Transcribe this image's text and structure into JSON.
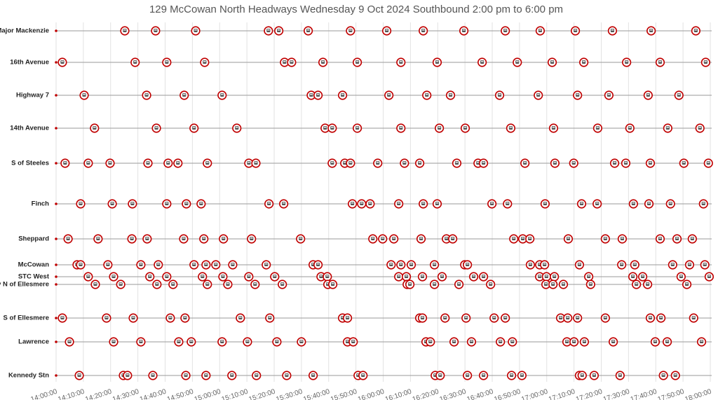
{
  "chart_data": {
    "type": "timeline",
    "title": "129 McCowan North Headways Wednesday 9 Oct 2024 Southbound 2:00 pm to 6:00 pm",
    "xlim": [
      840,
      1080
    ],
    "xticks": [
      {
        "value": 840,
        "label": "14:00:00"
      },
      {
        "value": 850,
        "label": "14:10:00"
      },
      {
        "value": 860,
        "label": "14:20:00"
      },
      {
        "value": 870,
        "label": "14:30:00"
      },
      {
        "value": 880,
        "label": "14:40:00"
      },
      {
        "value": 890,
        "label": "14:50:00"
      },
      {
        "value": 900,
        "label": "15:00:00"
      },
      {
        "value": 910,
        "label": "15:10:00"
      },
      {
        "value": 920,
        "label": "15:20:00"
      },
      {
        "value": 930,
        "label": "15:30:00"
      },
      {
        "value": 940,
        "label": "15:40:00"
      },
      {
        "value": 950,
        "label": "15:50:00"
      },
      {
        "value": 960,
        "label": "16:00:00"
      },
      {
        "value": 970,
        "label": "16:10:00"
      },
      {
        "value": 980,
        "label": "16:20:00"
      },
      {
        "value": 990,
        "label": "16:30:00"
      },
      {
        "value": 1000,
        "label": "16:40:00"
      },
      {
        "value": 1010,
        "label": "16:50:00"
      },
      {
        "value": 1020,
        "label": "17:00:00"
      },
      {
        "value": 1030,
        "label": "17:10:00"
      },
      {
        "value": 1040,
        "label": "17:20:00"
      },
      {
        "value": 1050,
        "label": "17:30:00"
      },
      {
        "value": 1060,
        "label": "17:40:00"
      },
      {
        "value": 1070,
        "label": "17:50:00"
      },
      {
        "value": 1080,
        "label": "18:00:00"
      }
    ],
    "grid": true,
    "color": "#c00000",
    "series": [
      {
        "name": "S of Major Mackenzie",
        "x": [
          865.2,
          876.5,
          891.2,
          917.9,
          921.7,
          932.5,
          948,
          961.3,
          974.7,
          989.6,
          1004.8,
          1017.6,
          1030.5,
          1044.1,
          1058.3,
          1074.7
        ]
      },
      {
        "name": "16th Avenue",
        "x": [
          842.3,
          869,
          880.6,
          894.5,
          923.8,
          926.4,
          937.9,
          950.5,
          966.5,
          979.8,
          996.3,
          1009.2,
          1022,
          1033.6,
          1049.3,
          1061.6,
          1078.3
        ]
      },
      {
        "name": "Highway 7",
        "x": [
          850.3,
          873.2,
          887,
          900.9,
          933.6,
          936.1,
          945.1,
          962.1,
          976,
          984.7,
          1002.7,
          1016.9,
          1031.3,
          1042.8,
          1057.2,
          1068.5
        ]
      },
      {
        "name": "14th Avenue",
        "x": [
          854.1,
          876.8,
          890.6,
          906.3,
          938.7,
          941.3,
          950.5,
          966.5,
          980.6,
          990.1,
          1006.8,
          1022.5,
          1038.7,
          1050.5,
          1064.4,
          1076.2
        ]
      },
      {
        "name": "S of Steeles",
        "x": [
          843.3,
          851.8,
          859.8,
          873.7,
          881.1,
          884.7,
          895.5,
          910.7,
          913.3,
          941.3,
          945.9,
          948,
          958,
          967.8,
          973.4,
          987,
          994.8,
          996.8,
          1012,
          1023,
          1029.9,
          1044.9,
          1049,
          1058,
          1070.3,
          1079.3
        ]
      },
      {
        "name": "Finch",
        "x": [
          849,
          860.6,
          868,
          880.6,
          887.8,
          893.2,
          918.1,
          923.5,
          948.7,
          952.1,
          955.2,
          965.7,
          974.7,
          979.8,
          999.9,
          1005.6,
          1019.4,
          1032.8,
          1038.5,
          1051.8,
          1057.5,
          1065.4,
          1077.5
        ]
      },
      {
        "name": "Sheppard",
        "x": [
          844.4,
          855.4,
          867.8,
          873.4,
          886.8,
          894.2,
          901.4,
          911.7,
          929.7,
          956.2,
          959.8,
          963.9,
          973.9,
          983.2,
          985.5,
          1007.9,
          1011.2,
          1013.8,
          1027.9,
          1041.5,
          1047.7,
          1061.6,
          1067.8,
          1073.4
        ]
      },
      {
        "name": "McCowan",
        "x": [
          847.7,
          849,
          859,
          871.1,
          877.5,
          890.6,
          895,
          898.6,
          904.8,
          917.1,
          934.3,
          936.1,
          962.9,
          966.5,
          970.3,
          978.8,
          989.9,
          990.9,
          1014,
          1017.4,
          1019.2,
          1032,
          1047.5,
          1052.3,
          1066.2,
          1072.4,
          1078
        ]
      },
      {
        "name": "STC West",
        "x": [
          851.8,
          861.1,
          874.4,
          880.6,
          893.7,
          901.2,
          910.7,
          920.2,
          937.2,
          939.5,
          965.7,
          968.5,
          974.4,
          981.6,
          993.2,
          996.8,
          1017.4,
          1019.9,
          1022.8,
          1035.4,
          1051.6,
          1055.2,
          1069.3,
          1079.6
        ]
      },
      {
        "name": "Brimley N of Ellesmere",
        "x": [
          854.4,
          863.7,
          877,
          882.9,
          895.5,
          903,
          913,
          923,
          939.7,
          941.5,
          968.8,
          969.8,
          978.8,
          987.8,
          999.4,
          1019.7,
          1022.3,
          1026.1,
          1036.1,
          1052.9,
          1057,
          1071.4
        ]
      },
      {
        "name": "S of Ellesmere",
        "x": [
          842.3,
          858.5,
          868.3,
          881.9,
          887.3,
          907.6,
          918.4,
          945.1,
          946.9,
          973.4,
          974.4,
          982.7,
          990.4,
          1000.7,
          1004.8,
          1025.1,
          1027.7,
          1031.3,
          1041.5,
          1058,
          1061.9,
          1073.9
        ]
      },
      {
        "name": "Lawrence",
        "x": [
          844.9,
          861.1,
          871.1,
          885,
          889.6,
          900.9,
          910.2,
          921,
          930,
          946.9,
          949,
          975.7,
          977.3,
          986,
          992.4,
          1003,
          1007.4,
          1027.4,
          1030,
          1033.8,
          1044.4,
          1059.8,
          1064.2,
          1076.8
        ]
      },
      {
        "name": "Kennedy Stn",
        "x": [
          848.5,
          864.7,
          866.2,
          875.5,
          887.6,
          895,
          904.5,
          913.5,
          924.6,
          934.3,
          950.8,
          952.6,
          979.1,
          980.9,
          990.9,
          996.8,
          1007.1,
          1010.9,
          1032,
          1033,
          1037.4,
          1046.9,
          1062.8,
          1067.2
        ]
      }
    ]
  }
}
